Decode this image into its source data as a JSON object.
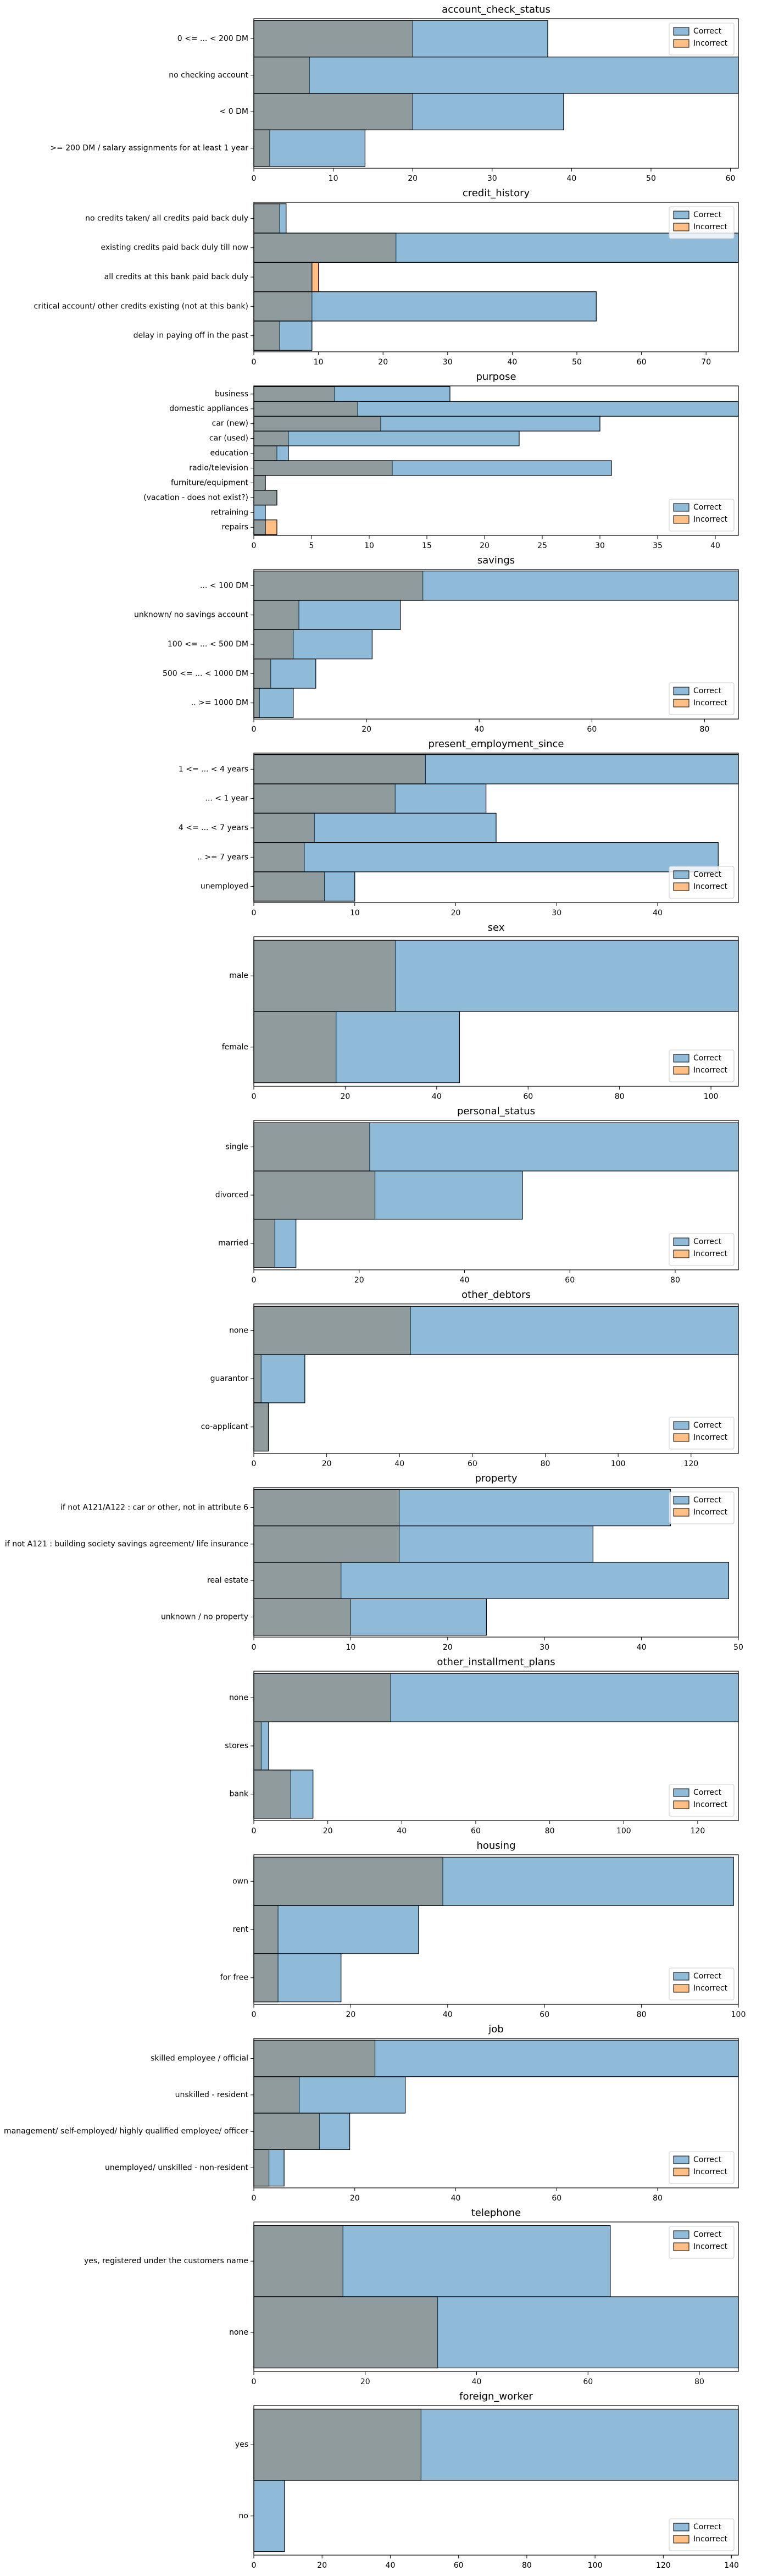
{
  "chart_data": [
    {
      "type": "bar",
      "orientation": "horizontal",
      "title": "account_check_status",
      "categories": [
        "0 <= ... < 200 DM",
        "no checking account",
        "< 0 DM",
        ">= 200 DM / salary assignments for at least 1 year"
      ],
      "series": [
        {
          "name": "Correct",
          "color": "#1f77b4",
          "values": [
            37,
            61,
            39,
            14
          ]
        },
        {
          "name": "Incorrect",
          "color": "#ff7f0e",
          "values": [
            20,
            7,
            20,
            2
          ]
        }
      ],
      "xlim": [
        0,
        61
      ],
      "xticks": [
        0,
        10,
        20,
        30,
        40,
        50,
        60
      ],
      "legend": "upper right"
    },
    {
      "type": "bar",
      "orientation": "horizontal",
      "title": "credit_history",
      "categories": [
        "no credits taken/ all credits paid back duly",
        "existing credits paid back duly till now",
        "all credits at this bank paid back duly",
        "critical account/ other credits existing (not at this bank)",
        "delay in paying off in the past"
      ],
      "series": [
        {
          "name": "Correct",
          "color": "#1f77b4",
          "values": [
            5,
            75,
            9,
            53,
            9
          ]
        },
        {
          "name": "Incorrect",
          "color": "#ff7f0e",
          "values": [
            4,
            22,
            10,
            9,
            4
          ]
        }
      ],
      "xlim": [
        0,
        75
      ],
      "xticks": [
        0,
        10,
        20,
        30,
        40,
        50,
        60,
        70
      ],
      "legend": "upper right"
    },
    {
      "type": "bar",
      "orientation": "horizontal",
      "title": "purpose",
      "categories": [
        "business",
        "domestic appliances",
        "car (new)",
        "car (used)",
        "education",
        "radio/television",
        "furniture/equipment",
        "(vacation - does not exist?)",
        "retraining",
        "repairs"
      ],
      "series": [
        {
          "name": "Correct",
          "color": "#1f77b4",
          "values": [
            17,
            42,
            30,
            23,
            3,
            31,
            1,
            2,
            1,
            1
          ]
        },
        {
          "name": "Incorrect",
          "color": "#ff7f0e",
          "values": [
            7,
            9,
            11,
            3,
            2,
            12,
            1,
            2,
            0,
            2
          ]
        }
      ],
      "xlim": [
        0,
        42
      ],
      "xticks": [
        0,
        5,
        10,
        15,
        20,
        25,
        30,
        35,
        40
      ],
      "legend": "lower right"
    },
    {
      "type": "bar",
      "orientation": "horizontal",
      "title": "savings",
      "categories": [
        "... < 100 DM",
        "unknown/ no savings account",
        "100 <= ... < 500 DM",
        "500 <= ... < 1000 DM",
        ".. >= 1000 DM"
      ],
      "series": [
        {
          "name": "Correct",
          "color": "#1f77b4",
          "values": [
            86,
            26,
            21,
            11,
            7
          ]
        },
        {
          "name": "Incorrect",
          "color": "#ff7f0e",
          "values": [
            30,
            8,
            7,
            3,
            1
          ]
        }
      ],
      "xlim": [
        0,
        86
      ],
      "xticks": [
        0,
        20,
        40,
        60,
        80
      ],
      "legend": "lower right"
    },
    {
      "type": "bar",
      "orientation": "horizontal",
      "title": "present_employment_since",
      "categories": [
        "1 <= ... < 4 years",
        "... < 1 year",
        "4 <= ... < 7 years",
        ".. >= 7 years",
        "unemployed"
      ],
      "series": [
        {
          "name": "Correct",
          "color": "#1f77b4",
          "values": [
            48,
            23,
            24,
            46,
            10
          ]
        },
        {
          "name": "Incorrect",
          "color": "#ff7f0e",
          "values": [
            17,
            14,
            6,
            5,
            7
          ]
        }
      ],
      "xlim": [
        0,
        48
      ],
      "xticks": [
        0,
        10,
        20,
        30,
        40
      ],
      "legend": "lower right"
    },
    {
      "type": "bar",
      "orientation": "horizontal",
      "title": "sex",
      "categories": [
        "male",
        "female"
      ],
      "series": [
        {
          "name": "Correct",
          "color": "#1f77b4",
          "values": [
            106,
            45
          ]
        },
        {
          "name": "Incorrect",
          "color": "#ff7f0e",
          "values": [
            31,
            18
          ]
        }
      ],
      "xlim": [
        0,
        106
      ],
      "xticks": [
        0,
        20,
        40,
        60,
        80,
        100
      ],
      "legend": "lower right"
    },
    {
      "type": "bar",
      "orientation": "horizontal",
      "title": "personal_status",
      "categories": [
        "single",
        "divorced",
        "married"
      ],
      "series": [
        {
          "name": "Correct",
          "color": "#1f77b4",
          "values": [
            92,
            51,
            8
          ]
        },
        {
          "name": "Incorrect",
          "color": "#ff7f0e",
          "values": [
            22,
            23,
            4
          ]
        }
      ],
      "xlim": [
        0,
        92
      ],
      "xticks": [
        0,
        20,
        40,
        60,
        80
      ],
      "legend": "lower right"
    },
    {
      "type": "bar",
      "orientation": "horizontal",
      "title": "other_debtors",
      "categories": [
        "none",
        "guarantor",
        "co-applicant"
      ],
      "series": [
        {
          "name": "Correct",
          "color": "#1f77b4",
          "values": [
            133,
            14,
            4
          ]
        },
        {
          "name": "Incorrect",
          "color": "#ff7f0e",
          "values": [
            43,
            2,
            4
          ]
        }
      ],
      "xlim": [
        0,
        133
      ],
      "xticks": [
        0,
        20,
        40,
        60,
        80,
        100,
        120
      ],
      "legend": "lower right"
    },
    {
      "type": "bar",
      "orientation": "horizontal",
      "title": "property",
      "categories": [
        "if not A121/A122 : car or other, not in attribute 6",
        "if not A121 : building society savings agreement/ life insurance",
        "real estate",
        "unknown / no property"
      ],
      "series": [
        {
          "name": "Correct",
          "color": "#1f77b4",
          "values": [
            43,
            35,
            49,
            24
          ]
        },
        {
          "name": "Incorrect",
          "color": "#ff7f0e",
          "values": [
            15,
            15,
            9,
            10
          ]
        }
      ],
      "xlim": [
        0,
        50
      ],
      "xticks": [
        0,
        10,
        20,
        30,
        40,
        50
      ],
      "legend": "upper right"
    },
    {
      "type": "bar",
      "orientation": "horizontal",
      "title": "other_installment_plans",
      "categories": [
        "none",
        "stores",
        "bank"
      ],
      "series": [
        {
          "name": "Correct",
          "color": "#1f77b4",
          "values": [
            131,
            4,
            16
          ]
        },
        {
          "name": "Incorrect",
          "color": "#ff7f0e",
          "values": [
            37,
            2,
            10
          ]
        }
      ],
      "xlim": [
        0,
        131
      ],
      "xticks": [
        0,
        20,
        40,
        60,
        80,
        100,
        120
      ],
      "legend": "lower right"
    },
    {
      "type": "bar",
      "orientation": "horizontal",
      "title": "housing",
      "categories": [
        "own",
        "rent",
        "for free"
      ],
      "series": [
        {
          "name": "Correct",
          "color": "#1f77b4",
          "values": [
            99,
            34,
            18
          ]
        },
        {
          "name": "Incorrect",
          "color": "#ff7f0e",
          "values": [
            39,
            5,
            5
          ]
        }
      ],
      "xlim": [
        0,
        100
      ],
      "xticks": [
        0,
        20,
        40,
        60,
        80,
        100
      ],
      "legend": "lower right"
    },
    {
      "type": "bar",
      "orientation": "horizontal",
      "title": "job",
      "categories": [
        "skilled employee / official",
        "unskilled - resident",
        "management/ self-employed/ highly qualified employee/ officer",
        "unemployed/ unskilled - non-resident"
      ],
      "series": [
        {
          "name": "Correct",
          "color": "#1f77b4",
          "values": [
            96,
            30,
            19,
            6
          ]
        },
        {
          "name": "Incorrect",
          "color": "#ff7f0e",
          "values": [
            24,
            9,
            13,
            3
          ]
        }
      ],
      "xlim": [
        0,
        96
      ],
      "xticks": [
        0,
        20,
        40,
        60,
        80
      ],
      "legend": "lower right"
    },
    {
      "type": "bar",
      "orientation": "horizontal",
      "title": "telephone",
      "categories": [
        "yes, registered under the customers name",
        "none"
      ],
      "series": [
        {
          "name": "Correct",
          "color": "#1f77b4",
          "values": [
            64,
            87
          ]
        },
        {
          "name": "Incorrect",
          "color": "#ff7f0e",
          "values": [
            16,
            33
          ]
        }
      ],
      "xlim": [
        0,
        87
      ],
      "xticks": [
        0,
        20,
        40,
        60,
        80
      ],
      "legend": "upper right"
    },
    {
      "type": "bar",
      "orientation": "horizontal",
      "title": "foreign_worker",
      "categories": [
        "yes",
        "no"
      ],
      "series": [
        {
          "name": "Correct",
          "color": "#1f77b4",
          "values": [
            142,
            9
          ]
        },
        {
          "name": "Incorrect",
          "color": "#ff7f0e",
          "values": [
            49,
            0
          ]
        }
      ],
      "xlim": [
        0,
        142
      ],
      "xticks": [
        0,
        20,
        40,
        60,
        80,
        100,
        120,
        140
      ],
      "legend": "lower right"
    }
  ]
}
